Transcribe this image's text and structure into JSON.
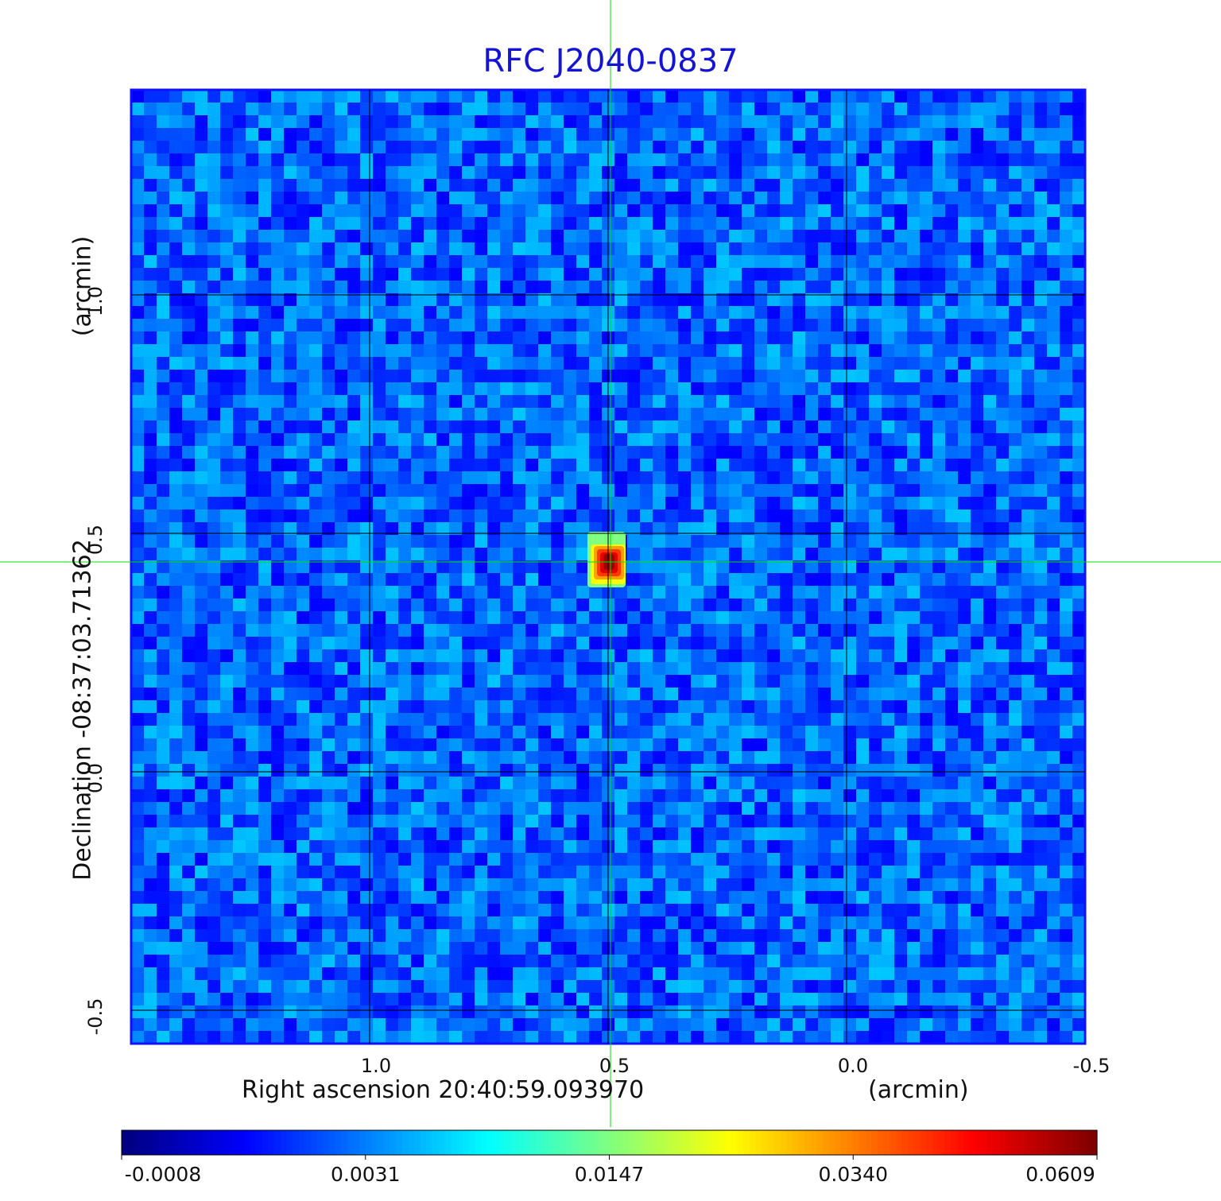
{
  "chart_data": {
    "type": "heatmap",
    "title": "RFC J2040-0837",
    "xlabel": "Right ascension  20:40:59.093970",
    "xunit": "(arcmin)",
    "ylabel": "Declination  -08:37:03.71362",
    "yunit": "(arcmin)",
    "xlim": [
      1.5,
      -0.5
    ],
    "ylim": [
      -0.57,
      1.43
    ],
    "x_ticks": [
      "1.0",
      "0.5",
      "0.0",
      "-0.5"
    ],
    "x_tick_values": [
      1.0,
      0.5,
      0.0,
      -0.5
    ],
    "y_ticks": [
      "1.0",
      "0.5",
      "0.0",
      "-0.5"
    ],
    "y_tick_values": [
      1.0,
      0.5,
      0.0,
      -0.5
    ],
    "grid": true,
    "crosshair": {
      "x": 0.495,
      "y": 0.44,
      "color": "#00e000"
    },
    "source_peak": {
      "x": 0.5,
      "y": 0.44,
      "value": 0.0609
    },
    "colormap": "jet",
    "colorbar": {
      "orientation": "horizontal",
      "ticks": [
        "-0.0008",
        "0.0031",
        "0.0147",
        "0.0340",
        "0.0609"
      ],
      "tick_values": [
        -0.0008,
        0.0031,
        0.0147,
        0.034,
        0.0609
      ]
    },
    "background_level": 0.0
  },
  "colors": {
    "title": "#1414d2",
    "grid": "#000000",
    "crosshair": "#00e000",
    "frame": "#1010ff"
  }
}
